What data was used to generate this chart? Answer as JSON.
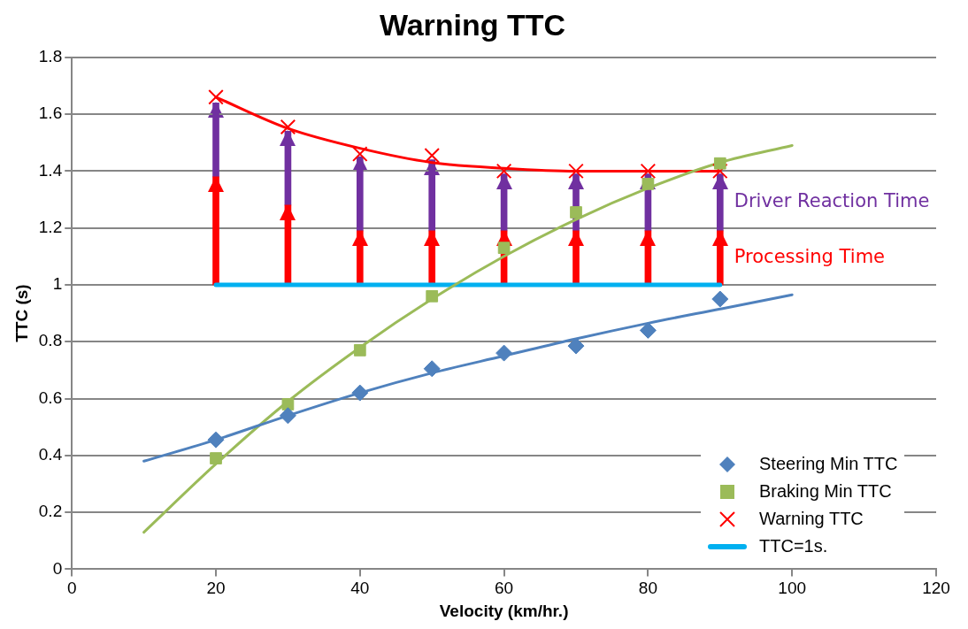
{
  "chart_data": {
    "type": "scatter",
    "title": "Warning TTC",
    "xlabel": "Velocity (km/hr.)",
    "ylabel": "TTC (s)",
    "xlim": [
      0,
      120
    ],
    "xticks": [
      0,
      20,
      40,
      60,
      80,
      100,
      120
    ],
    "ylim": [
      0,
      1.8
    ],
    "yticks": [
      0,
      0.2,
      0.4,
      0.6,
      0.8,
      1,
      1.2,
      1.4,
      1.6,
      1.8
    ],
    "grid": "y",
    "legend": "bottom right",
    "series": [
      {
        "type": "bar",
        "color": "#ff0000",
        "x": [
          20,
          30,
          40,
          50,
          60,
          70,
          80,
          90
        ],
        "base": [
          1,
          1,
          1,
          1,
          1,
          1,
          1,
          1
        ],
        "values": [
          0.38,
          0.28,
          0.19,
          0.19,
          0.19,
          0.19,
          0.19,
          0.19
        ]
      },
      {
        "type": "bar",
        "color": "#7030a0",
        "x": [
          20,
          30,
          40,
          50,
          60,
          70,
          80,
          90
        ],
        "base": [
          1.38,
          1.28,
          1.19,
          1.19,
          1.19,
          1.19,
          1.19,
          1.19
        ],
        "values": [
          0.26,
          0.26,
          0.26,
          0.25,
          0.2,
          0.2,
          0.2,
          0.2
        ]
      },
      {
        "type": "line",
        "color": "#4f81bd",
        "marker": "none",
        "x": [
          10,
          20,
          30,
          40,
          50,
          60,
          70,
          80,
          90,
          100
        ],
        "values": [
          0.38,
          0.455,
          0.54,
          0.62,
          0.69,
          0.75,
          0.81,
          0.865,
          0.915,
          0.965
        ]
      },
      {
        "type": "line",
        "color": "#9bbb59",
        "marker": "none",
        "x": [
          10,
          20,
          30,
          40,
          50,
          60,
          70,
          80,
          90,
          100
        ],
        "values": [
          0.13,
          0.37,
          0.59,
          0.78,
          0.95,
          1.1,
          1.23,
          1.34,
          1.43,
          1.49
        ]
      },
      {
        "type": "line",
        "color": "#ff0000",
        "marker": "none",
        "x": [
          20,
          30,
          40,
          50,
          60,
          70,
          80,
          90
        ],
        "values": [
          1.66,
          1.55,
          1.48,
          1.43,
          1.41,
          1.4,
          1.4,
          1.4
        ]
      },
      {
        "name": "Steering Min TTC",
        "color": "#4f81bd",
        "marker": "diamond",
        "x": [
          20,
          30,
          40,
          50,
          60,
          70,
          80,
          90
        ],
        "values": [
          0.455,
          0.54,
          0.62,
          0.705,
          0.76,
          0.785,
          0.84,
          0.95
        ]
      },
      {
        "name": "Braking Min TTC",
        "color": "#9bbb59",
        "marker": "square",
        "x": [
          20,
          30,
          40,
          50,
          60,
          70,
          80,
          90
        ],
        "values": [
          0.39,
          0.58,
          0.77,
          0.96,
          1.13,
          1.255,
          1.355,
          1.427
        ]
      },
      {
        "name": "Warning TTC",
        "color": "#ff0000",
        "marker": "cross",
        "x": [
          20,
          30,
          40,
          50,
          60,
          70,
          80,
          90
        ],
        "values": [
          1.66,
          1.555,
          1.46,
          1.455,
          1.4,
          1.4,
          1.4,
          1.4
        ]
      },
      {
        "type": "line",
        "name": "TTC=1s.",
        "color": "#00b0f0",
        "marker": "none",
        "x": [
          20,
          90
        ],
        "values": [
          1,
          1
        ]
      }
    ],
    "annotations": [
      "Driver Reaction Time",
      "Processing Time"
    ]
  }
}
